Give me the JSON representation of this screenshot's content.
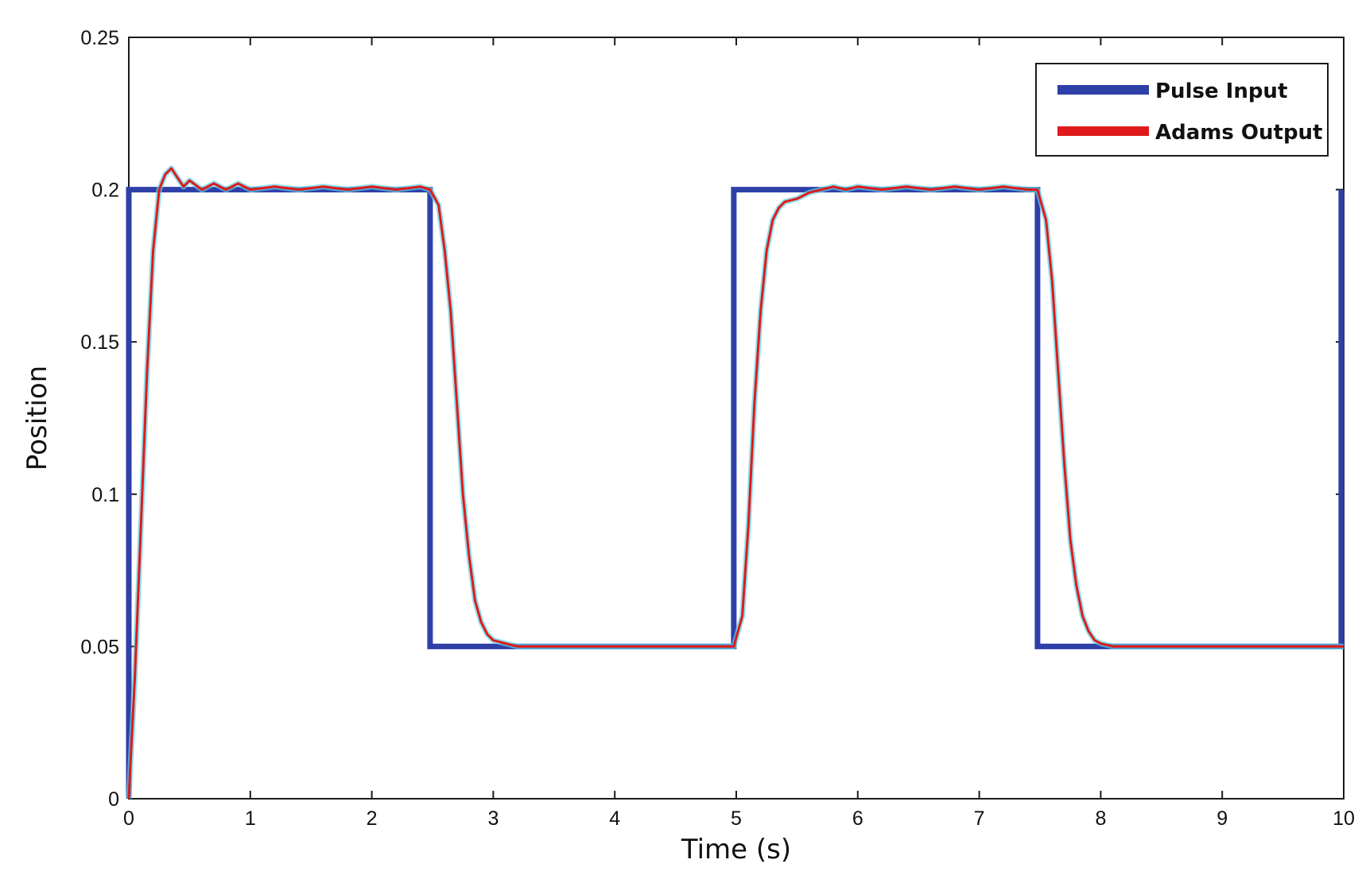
{
  "chart_data": {
    "type": "line",
    "title": "",
    "xlabel": "Time (s)",
    "ylabel": "Position",
    "xlim": [
      0,
      10
    ],
    "ylim": [
      0,
      0.25
    ],
    "xticks": [
      0,
      1,
      2,
      3,
      4,
      5,
      6,
      7,
      8,
      9,
      10
    ],
    "yticks": [
      0,
      0.05,
      0.1,
      0.15,
      0.2,
      0.25
    ],
    "xtick_labels": [
      "0",
      "1",
      "2",
      "3",
      "4",
      "5",
      "6",
      "7",
      "8",
      "9",
      "10"
    ],
    "ytick_labels": [
      "0",
      "0.05",
      "0.1",
      "0.15",
      "0.2",
      "0.25"
    ],
    "grid": false,
    "legend_position": "top-right",
    "series": [
      {
        "name": "Pulse Input",
        "color": "#2e3fa8",
        "x": [
          0,
          0,
          2.48,
          2.48,
          4.98,
          4.98,
          7.48,
          7.48,
          9.98,
          9.98
        ],
        "y": [
          0,
          0.2,
          0.2,
          0.05,
          0.05,
          0.2,
          0.2,
          0.05,
          0.05,
          0.2
        ]
      },
      {
        "name": "Adams Output",
        "color": "#e01a1a",
        "x": [
          0,
          0.05,
          0.1,
          0.15,
          0.2,
          0.25,
          0.3,
          0.35,
          0.4,
          0.45,
          0.5,
          0.6,
          0.7,
          0.8,
          0.9,
          1.0,
          1.2,
          1.4,
          1.6,
          1.8,
          2.0,
          2.2,
          2.4,
          2.48,
          2.55,
          2.6,
          2.65,
          2.7,
          2.75,
          2.8,
          2.85,
          2.9,
          2.95,
          3.0,
          3.1,
          3.2,
          3.4,
          3.6,
          3.8,
          4.0,
          4.2,
          4.4,
          4.6,
          4.8,
          4.98,
          5.05,
          5.1,
          5.15,
          5.2,
          5.25,
          5.3,
          5.35,
          5.4,
          5.5,
          5.6,
          5.7,
          5.8,
          5.9,
          6.0,
          6.2,
          6.4,
          6.6,
          6.8,
          7.0,
          7.2,
          7.4,
          7.48,
          7.55,
          7.6,
          7.65,
          7.7,
          7.75,
          7.8,
          7.85,
          7.9,
          7.95,
          8.0,
          8.1,
          8.2,
          8.4,
          8.6,
          8.8,
          9.0,
          9.2,
          9.4,
          9.6,
          9.8,
          10.0
        ],
        "y": [
          0,
          0.04,
          0.09,
          0.14,
          0.18,
          0.2,
          0.205,
          0.207,
          0.204,
          0.201,
          0.203,
          0.2,
          0.202,
          0.2,
          0.202,
          0.2,
          0.201,
          0.2,
          0.201,
          0.2,
          0.201,
          0.2,
          0.201,
          0.2,
          0.195,
          0.18,
          0.16,
          0.13,
          0.1,
          0.08,
          0.065,
          0.058,
          0.054,
          0.052,
          0.051,
          0.05,
          0.05,
          0.05,
          0.05,
          0.05,
          0.05,
          0.05,
          0.05,
          0.05,
          0.05,
          0.06,
          0.09,
          0.13,
          0.16,
          0.18,
          0.19,
          0.194,
          0.196,
          0.197,
          0.199,
          0.2,
          0.201,
          0.2,
          0.201,
          0.2,
          0.201,
          0.2,
          0.201,
          0.2,
          0.201,
          0.2,
          0.2,
          0.19,
          0.17,
          0.14,
          0.11,
          0.085,
          0.07,
          0.06,
          0.055,
          0.052,
          0.051,
          0.05,
          0.05,
          0.05,
          0.05,
          0.05,
          0.05,
          0.05,
          0.05,
          0.05,
          0.05,
          0.05
        ]
      }
    ]
  }
}
